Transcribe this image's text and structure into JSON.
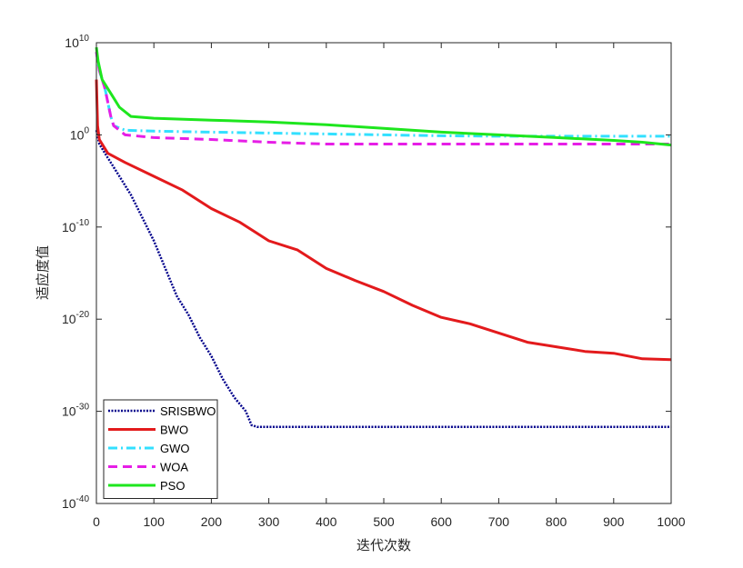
{
  "chart_data": {
    "type": "line",
    "title": "",
    "xlabel": "迭代次数",
    "ylabel": "适应度值",
    "xlim": [
      0,
      1000
    ],
    "ylim_log10": [
      -40,
      10
    ],
    "y_scale": "log",
    "x_ticks": [
      "0",
      "100",
      "200",
      "300",
      "400",
      "500",
      "600",
      "700",
      "800",
      "900",
      "1000"
    ],
    "y_ticks": [
      {
        "base": "10",
        "exp": "10"
      },
      {
        "base": "10",
        "exp": "0"
      },
      {
        "base": "10",
        "exp": "-10"
      },
      {
        "base": "10",
        "exp": "-20"
      },
      {
        "base": "10",
        "exp": "-30"
      },
      {
        "base": "10",
        "exp": "-40"
      }
    ],
    "legend_position": "bottom-left",
    "series": [
      {
        "name": "SRISBWO",
        "color": "#00008b",
        "style": "dotted",
        "x": [
          0,
          5,
          20,
          40,
          60,
          80,
          100,
          120,
          140,
          160,
          180,
          200,
          220,
          240,
          260,
          270,
          280,
          300,
          400,
          500,
          600,
          700,
          800,
          900,
          1000
        ],
        "log10_y": [
          0.5,
          -1,
          -2.5,
          -4.5,
          -6.5,
          -9,
          -11.5,
          -14.5,
          -17.5,
          -19.5,
          -22,
          -24,
          -26.5,
          -28.5,
          -30,
          -31.5,
          -31.7,
          -31.7,
          -31.7,
          -31.7,
          -31.7,
          -31.7,
          -31.7,
          -31.7,
          -31.7
        ]
      },
      {
        "name": "BWO",
        "color": "#e31a1c",
        "style": "solid",
        "x": [
          0,
          2,
          5,
          20,
          50,
          100,
          150,
          200,
          250,
          300,
          350,
          400,
          450,
          500,
          550,
          600,
          650,
          700,
          750,
          800,
          850,
          900,
          950,
          1000
        ],
        "log10_y": [
          6,
          1,
          -0.5,
          -2,
          -3,
          -4.5,
          -6,
          -8,
          -9.5,
          -11.5,
          -12.5,
          -14.5,
          -15.8,
          -17,
          -18.5,
          -19.8,
          -20.5,
          -21.5,
          -22.5,
          -23,
          -23.5,
          -23.7,
          -24.3,
          -24.4
        ]
      },
      {
        "name": "GWO",
        "color": "#33e0ff",
        "style": "dashdot",
        "x": [
          0,
          5,
          15,
          25,
          30,
          50,
          100,
          200,
          300,
          400,
          500,
          600,
          700,
          800,
          900,
          1000
        ],
        "log10_y": [
          9,
          7,
          5,
          2,
          1,
          0.5,
          0.4,
          0.3,
          0.2,
          0.1,
          0,
          -0.1,
          -0.15,
          -0.15,
          -0.15,
          -0.15
        ]
      },
      {
        "name": "WOA",
        "color": "#e61ee6",
        "style": "dashed",
        "x": [
          0,
          5,
          15,
          25,
          30,
          50,
          100,
          200,
          300,
          400,
          500,
          600,
          700,
          800,
          900,
          1000
        ],
        "log10_y": [
          9,
          7,
          5,
          2,
          1,
          0,
          -0.3,
          -0.5,
          -0.8,
          -1,
          -1,
          -1,
          -1,
          -1,
          -1,
          -1
        ]
      },
      {
        "name": "PSO",
        "color": "#1ee61e",
        "style": "solid",
        "x": [
          0,
          3,
          10,
          30,
          40,
          60,
          100,
          200,
          300,
          400,
          500,
          600,
          700,
          800,
          900,
          950,
          1000
        ],
        "log10_y": [
          9.5,
          8,
          6,
          4,
          3,
          2,
          1.8,
          1.6,
          1.4,
          1.1,
          0.7,
          0.3,
          0,
          -0.3,
          -0.6,
          -0.8,
          -1.1
        ]
      }
    ]
  }
}
